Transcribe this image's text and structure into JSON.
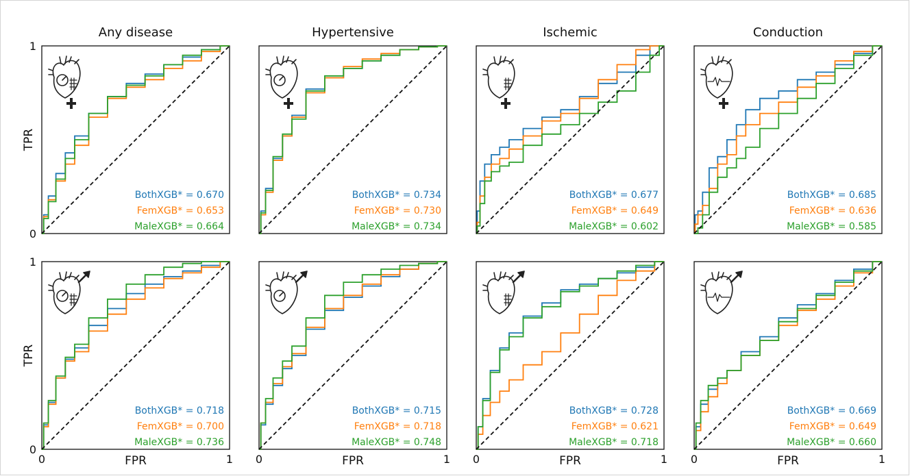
{
  "colors": {
    "BothXGB": "#1f77b4",
    "FemXGB": "#ff7f0e",
    "MaleXGB": "#2ca02c",
    "diagonal": "#111111"
  },
  "axis": {
    "x_label": "FPR",
    "y_label": "TPR",
    "tick_min": "0",
    "tick_max": "1"
  },
  "chart_data": [
    {
      "type": "line",
      "row": "female",
      "title": "Any disease",
      "icon": "heart-gauge-grid-female-icon",
      "xlabel": "",
      "ylabel": "TPR",
      "xlim": [
        0,
        1
      ],
      "ylim": [
        0,
        1
      ],
      "series": [
        {
          "name": "BothXGB",
          "label": "BothXGB* = 0.670",
          "auc": 0.67,
          "x": [
            0,
            0.02,
            0.05,
            0.1,
            0.15,
            0.2,
            0.3,
            0.4,
            0.5,
            0.6,
            0.7,
            0.8,
            0.9,
            1.0
          ],
          "y": [
            0,
            0.1,
            0.2,
            0.32,
            0.43,
            0.52,
            0.64,
            0.73,
            0.8,
            0.85,
            0.9,
            0.94,
            0.98,
            1.0
          ]
        },
        {
          "name": "FemXGB",
          "label": "FemXGB* = 0.653",
          "auc": 0.653,
          "x": [
            0,
            0.02,
            0.05,
            0.1,
            0.15,
            0.2,
            0.3,
            0.4,
            0.5,
            0.6,
            0.7,
            0.8,
            0.9,
            1.0
          ],
          "y": [
            0,
            0.09,
            0.18,
            0.28,
            0.37,
            0.47,
            0.62,
            0.72,
            0.78,
            0.82,
            0.88,
            0.92,
            0.97,
            1.0
          ]
        },
        {
          "name": "MaleXGB",
          "label": "MaleXGB* = 0.664",
          "auc": 0.664,
          "x": [
            0,
            0.02,
            0.05,
            0.1,
            0.15,
            0.2,
            0.3,
            0.4,
            0.5,
            0.6,
            0.7,
            0.8,
            0.9,
            1.0
          ],
          "y": [
            0,
            0.08,
            0.17,
            0.29,
            0.4,
            0.5,
            0.64,
            0.73,
            0.79,
            0.84,
            0.9,
            0.95,
            0.98,
            1.0
          ]
        }
      ]
    },
    {
      "type": "line",
      "row": "female",
      "title": "Hypertensive",
      "icon": "heart-gauge-female-icon",
      "xlabel": "",
      "ylabel": "",
      "xlim": [
        0,
        1
      ],
      "ylim": [
        0,
        1
      ],
      "series": [
        {
          "name": "BothXGB",
          "label": "BothXGB* = 0.734",
          "auc": 0.734,
          "x": [
            0,
            0.02,
            0.05,
            0.1,
            0.15,
            0.2,
            0.3,
            0.4,
            0.5,
            0.6,
            0.7,
            0.8,
            0.9,
            1.0
          ],
          "y": [
            0,
            0.12,
            0.24,
            0.4,
            0.52,
            0.63,
            0.77,
            0.83,
            0.88,
            0.92,
            0.95,
            0.98,
            0.995,
            1.0
          ]
        },
        {
          "name": "FemXGB",
          "label": "FemXGB* = 0.730",
          "auc": 0.73,
          "x": [
            0,
            0.02,
            0.05,
            0.1,
            0.15,
            0.2,
            0.3,
            0.4,
            0.5,
            0.6,
            0.7,
            0.8,
            0.9,
            1.0
          ],
          "y": [
            0,
            0.1,
            0.22,
            0.39,
            0.52,
            0.62,
            0.75,
            0.83,
            0.89,
            0.93,
            0.96,
            0.98,
            0.995,
            1.0
          ]
        },
        {
          "name": "MaleXGB",
          "label": "MaleXGB* = 0.734",
          "auc": 0.734,
          "x": [
            0,
            0.02,
            0.05,
            0.1,
            0.15,
            0.2,
            0.3,
            0.4,
            0.5,
            0.6,
            0.7,
            0.8,
            0.9,
            1.0
          ],
          "y": [
            0,
            0.11,
            0.23,
            0.41,
            0.53,
            0.61,
            0.76,
            0.84,
            0.88,
            0.92,
            0.95,
            0.98,
            0.995,
            1.0
          ]
        }
      ]
    },
    {
      "type": "line",
      "row": "female",
      "title": "Ischemic",
      "icon": "heart-grid-female-icon",
      "xlabel": "",
      "ylabel": "",
      "xlim": [
        0,
        1
      ],
      "ylim": [
        0,
        1
      ],
      "series": [
        {
          "name": "BothXGB",
          "label": "BothXGB* = 0.677",
          "auc": 0.677,
          "x": [
            0,
            0.01,
            0.03,
            0.06,
            0.1,
            0.15,
            0.2,
            0.3,
            0.4,
            0.5,
            0.6,
            0.7,
            0.8,
            0.9,
            0.95,
            1.0
          ],
          "y": [
            0,
            0.12,
            0.28,
            0.37,
            0.42,
            0.46,
            0.5,
            0.56,
            0.62,
            0.66,
            0.73,
            0.8,
            0.86,
            0.95,
            1.0,
            1.0
          ]
        },
        {
          "name": "FemXGB",
          "label": "FemXGB* = 0.649",
          "auc": 0.649,
          "x": [
            0,
            0.01,
            0.03,
            0.06,
            0.1,
            0.15,
            0.2,
            0.3,
            0.4,
            0.5,
            0.6,
            0.7,
            0.8,
            0.9,
            0.95,
            1.0
          ],
          "y": [
            0,
            0.06,
            0.2,
            0.3,
            0.37,
            0.4,
            0.45,
            0.52,
            0.6,
            0.64,
            0.72,
            0.82,
            0.9,
            0.98,
            1.0,
            1.0
          ]
        },
        {
          "name": "MaleXGB",
          "label": "MaleXGB* = 0.602",
          "auc": 0.602,
          "x": [
            0,
            0.01,
            0.03,
            0.06,
            0.1,
            0.15,
            0.2,
            0.3,
            0.4,
            0.5,
            0.6,
            0.7,
            0.8,
            0.9,
            0.95,
            1.0
          ],
          "y": [
            0,
            0.04,
            0.16,
            0.28,
            0.33,
            0.36,
            0.38,
            0.47,
            0.53,
            0.58,
            0.64,
            0.7,
            0.76,
            0.86,
            0.95,
            1.0
          ]
        }
      ]
    },
    {
      "type": "line",
      "row": "female",
      "title": "Conduction",
      "icon": "heart-ecg-female-icon",
      "xlabel": "",
      "ylabel": "",
      "xlim": [
        0,
        1
      ],
      "ylim": [
        0,
        1
      ],
      "series": [
        {
          "name": "BothXGB",
          "label": "BothXGB* = 0.685",
          "auc": 0.685,
          "x": [
            0,
            0.01,
            0.03,
            0.06,
            0.1,
            0.15,
            0.2,
            0.25,
            0.3,
            0.4,
            0.5,
            0.6,
            0.7,
            0.8,
            0.9,
            1.0
          ],
          "y": [
            0,
            0.1,
            0.12,
            0.22,
            0.35,
            0.41,
            0.5,
            0.58,
            0.66,
            0.72,
            0.76,
            0.82,
            0.86,
            0.9,
            0.96,
            1.0
          ]
        },
        {
          "name": "FemXGB",
          "label": "FemXGB* = 0.636",
          "auc": 0.636,
          "x": [
            0,
            0.01,
            0.03,
            0.06,
            0.1,
            0.15,
            0.2,
            0.25,
            0.3,
            0.4,
            0.5,
            0.6,
            0.7,
            0.8,
            0.9,
            1.0
          ],
          "y": [
            0,
            0.05,
            0.1,
            0.15,
            0.24,
            0.37,
            0.42,
            0.52,
            0.58,
            0.64,
            0.7,
            0.78,
            0.84,
            0.92,
            0.97,
            1.0
          ]
        },
        {
          "name": "MaleXGB",
          "label": "MaleXGB* = 0.585",
          "auc": 0.585,
          "x": [
            0,
            0.01,
            0.03,
            0.06,
            0.1,
            0.15,
            0.2,
            0.25,
            0.3,
            0.4,
            0.5,
            0.6,
            0.7,
            0.8,
            0.9,
            1.0
          ],
          "y": [
            0,
            0.0,
            0.03,
            0.1,
            0.22,
            0.3,
            0.35,
            0.4,
            0.46,
            0.56,
            0.64,
            0.72,
            0.8,
            0.88,
            0.95,
            1.0
          ]
        }
      ]
    },
    {
      "type": "line",
      "row": "male",
      "title": "Any disease",
      "icon": "heart-gauge-grid-male-icon",
      "xlabel": "FPR",
      "ylabel": "TPR",
      "xlim": [
        0,
        1
      ],
      "ylim": [
        0,
        1
      ],
      "series": [
        {
          "name": "BothXGB",
          "label": "BothXGB* = 0.718",
          "auc": 0.718,
          "x": [
            0,
            0.02,
            0.05,
            0.1,
            0.15,
            0.2,
            0.3,
            0.4,
            0.5,
            0.6,
            0.7,
            0.8,
            0.9,
            1.0
          ],
          "y": [
            0,
            0.13,
            0.25,
            0.38,
            0.48,
            0.54,
            0.66,
            0.75,
            0.83,
            0.88,
            0.92,
            0.95,
            0.98,
            1.0
          ]
        },
        {
          "name": "FemXGB",
          "label": "FemXGB* = 0.700",
          "auc": 0.7,
          "x": [
            0,
            0.02,
            0.05,
            0.1,
            0.15,
            0.2,
            0.3,
            0.4,
            0.5,
            0.6,
            0.7,
            0.8,
            0.9,
            1.0
          ],
          "y": [
            0,
            0.12,
            0.24,
            0.38,
            0.47,
            0.52,
            0.63,
            0.72,
            0.8,
            0.86,
            0.91,
            0.94,
            0.97,
            1.0
          ]
        },
        {
          "name": "MaleXGB",
          "label": "MaleXGB* = 0.736",
          "auc": 0.736,
          "x": [
            0,
            0.02,
            0.05,
            0.1,
            0.15,
            0.2,
            0.3,
            0.4,
            0.5,
            0.6,
            0.7,
            0.8,
            0.9,
            1.0
          ],
          "y": [
            0,
            0.14,
            0.26,
            0.39,
            0.49,
            0.56,
            0.7,
            0.8,
            0.88,
            0.93,
            0.97,
            0.99,
            1.0,
            1.0
          ]
        }
      ]
    },
    {
      "type": "line",
      "row": "male",
      "title": "Hypertensive",
      "icon": "heart-gauge-male-icon",
      "xlabel": "FPR",
      "ylabel": "",
      "xlim": [
        0,
        1
      ],
      "ylim": [
        0,
        1
      ],
      "series": [
        {
          "name": "BothXGB",
          "label": "BothXGB* = 0.715",
          "auc": 0.715,
          "x": [
            0,
            0.02,
            0.05,
            0.1,
            0.15,
            0.2,
            0.3,
            0.4,
            0.5,
            0.6,
            0.7,
            0.8,
            0.9,
            1.0
          ],
          "y": [
            0,
            0.13,
            0.24,
            0.34,
            0.43,
            0.5,
            0.64,
            0.74,
            0.81,
            0.87,
            0.92,
            0.96,
            0.99,
            1.0
          ]
        },
        {
          "name": "FemXGB",
          "label": "FemXGB* = 0.718",
          "auc": 0.718,
          "x": [
            0,
            0.02,
            0.05,
            0.1,
            0.15,
            0.2,
            0.3,
            0.4,
            0.5,
            0.6,
            0.7,
            0.8,
            0.9,
            1.0
          ],
          "y": [
            0,
            0.14,
            0.25,
            0.35,
            0.44,
            0.51,
            0.65,
            0.75,
            0.82,
            0.88,
            0.93,
            0.96,
            0.99,
            1.0
          ]
        },
        {
          "name": "MaleXGB",
          "label": "MaleXGB* = 0.748",
          "auc": 0.748,
          "x": [
            0,
            0.02,
            0.05,
            0.1,
            0.15,
            0.2,
            0.3,
            0.4,
            0.5,
            0.6,
            0.7,
            0.8,
            0.9,
            1.0
          ],
          "y": [
            0,
            0.14,
            0.27,
            0.38,
            0.47,
            0.55,
            0.7,
            0.82,
            0.89,
            0.93,
            0.96,
            0.98,
            0.99,
            1.0
          ]
        }
      ]
    },
    {
      "type": "line",
      "row": "male",
      "title": "Ischemic",
      "icon": "heart-grid-male-icon",
      "xlabel": "FPR",
      "ylabel": "",
      "xlim": [
        0,
        1
      ],
      "ylim": [
        0,
        1
      ],
      "series": [
        {
          "name": "BothXGB",
          "label": "BothXGB* = 0.728",
          "auc": 0.728,
          "x": [
            0,
            0.02,
            0.05,
            0.1,
            0.15,
            0.2,
            0.3,
            0.4,
            0.5,
            0.6,
            0.7,
            0.8,
            0.9,
            1.0
          ],
          "y": [
            0,
            0.12,
            0.27,
            0.42,
            0.54,
            0.62,
            0.71,
            0.78,
            0.85,
            0.88,
            0.91,
            0.94,
            0.97,
            1.0
          ]
        },
        {
          "name": "FemXGB",
          "label": "FemXGB* = 0.621",
          "auc": 0.621,
          "x": [
            0,
            0.02,
            0.05,
            0.1,
            0.15,
            0.2,
            0.3,
            0.4,
            0.5,
            0.6,
            0.7,
            0.8,
            0.9,
            1.0
          ],
          "y": [
            0,
            0.08,
            0.18,
            0.25,
            0.31,
            0.37,
            0.45,
            0.52,
            0.62,
            0.72,
            0.82,
            0.9,
            0.95,
            1.0
          ]
        },
        {
          "name": "MaleXGB",
          "label": "MaleXGB* = 0.718",
          "auc": 0.718,
          "x": [
            0,
            0.02,
            0.05,
            0.1,
            0.15,
            0.2,
            0.3,
            0.4,
            0.5,
            0.6,
            0.7,
            0.8,
            0.9,
            1.0
          ],
          "y": [
            0,
            0.12,
            0.26,
            0.41,
            0.53,
            0.6,
            0.7,
            0.76,
            0.84,
            0.87,
            0.91,
            0.95,
            0.98,
            1.0
          ]
        }
      ]
    },
    {
      "type": "line",
      "row": "male",
      "title": "Conduction",
      "icon": "heart-ecg-male-icon",
      "xlabel": "FPR",
      "ylabel": "",
      "xlim": [
        0,
        1
      ],
      "ylim": [
        0,
        1
      ],
      "series": [
        {
          "name": "BothXGB",
          "label": "BothXGB* = 0.669",
          "auc": 0.669,
          "x": [
            0,
            0.02,
            0.05,
            0.1,
            0.15,
            0.2,
            0.3,
            0.4,
            0.5,
            0.6,
            0.7,
            0.8,
            0.9,
            1.0
          ],
          "y": [
            0,
            0.12,
            0.24,
            0.32,
            0.38,
            0.42,
            0.52,
            0.6,
            0.7,
            0.77,
            0.83,
            0.9,
            0.96,
            1.0
          ]
        },
        {
          "name": "FemXGB",
          "label": "FemXGB* = 0.649",
          "auc": 0.649,
          "x": [
            0,
            0.02,
            0.05,
            0.1,
            0.15,
            0.2,
            0.3,
            0.4,
            0.5,
            0.6,
            0.7,
            0.8,
            0.9,
            1.0
          ],
          "y": [
            0,
            0.1,
            0.2,
            0.28,
            0.35,
            0.42,
            0.5,
            0.58,
            0.66,
            0.74,
            0.8,
            0.87,
            0.94,
            1.0
          ]
        },
        {
          "name": "MaleXGB",
          "label": "MaleXGB* = 0.660",
          "auc": 0.66,
          "x": [
            0,
            0.02,
            0.05,
            0.1,
            0.15,
            0.2,
            0.3,
            0.4,
            0.5,
            0.6,
            0.7,
            0.8,
            0.9,
            1.0
          ],
          "y": [
            0,
            0.14,
            0.26,
            0.34,
            0.38,
            0.42,
            0.5,
            0.58,
            0.68,
            0.75,
            0.82,
            0.89,
            0.95,
            1.0
          ]
        }
      ]
    }
  ]
}
